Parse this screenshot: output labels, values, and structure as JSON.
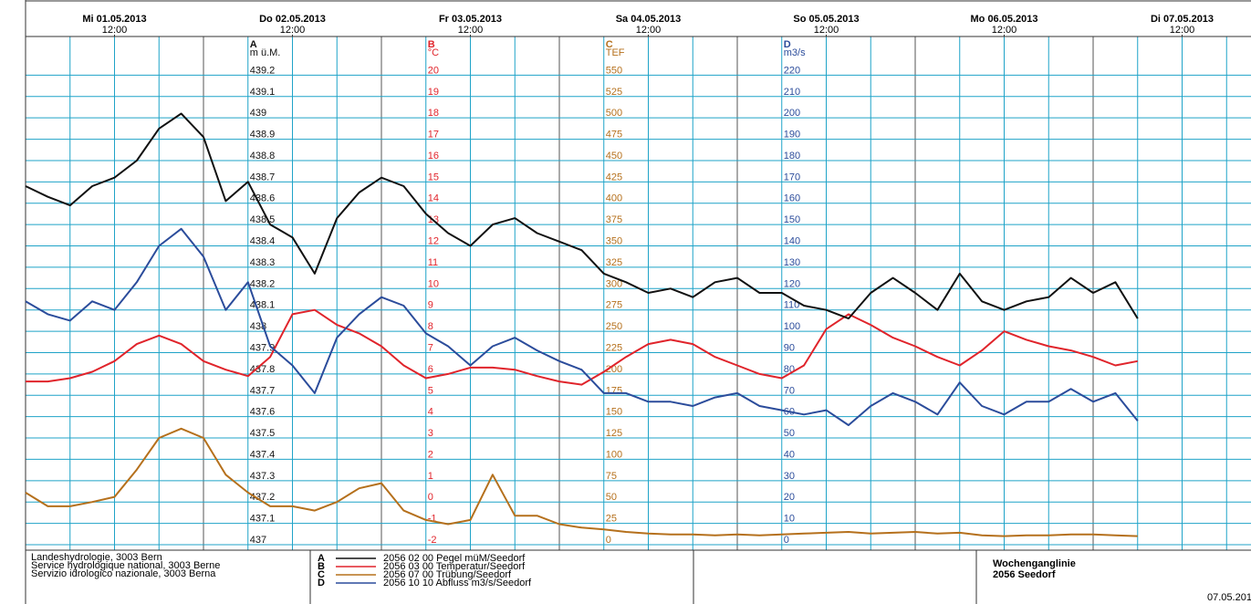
{
  "chart_data": {
    "type": "line",
    "x": [
      "01.05.2013 00:00",
      "01.05.2013 03:00",
      "01.05.2013 06:00",
      "01.05.2013 09:00",
      "01.05.2013 12:00",
      "01.05.2013 15:00",
      "01.05.2013 18:00",
      "01.05.2013 21:00",
      "02.05.2013 00:00",
      "02.05.2013 03:00",
      "02.05.2013 06:00",
      "02.05.2013 09:00",
      "02.05.2013 12:00",
      "02.05.2013 15:00",
      "02.05.2013 18:00",
      "02.05.2013 21:00",
      "03.05.2013 00:00",
      "03.05.2013 03:00",
      "03.05.2013 06:00",
      "03.05.2013 09:00",
      "03.05.2013 12:00",
      "03.05.2013 15:00",
      "03.05.2013 18:00",
      "03.05.2013 21:00",
      "04.05.2013 00:00",
      "04.05.2013 03:00",
      "04.05.2013 06:00",
      "04.05.2013 09:00",
      "04.05.2013 12:00",
      "04.05.2013 15:00",
      "04.05.2013 18:00",
      "04.05.2013 21:00",
      "05.05.2013 00:00",
      "05.05.2013 03:00",
      "05.05.2013 06:00",
      "05.05.2013 09:00",
      "05.05.2013 12:00",
      "05.05.2013 15:00",
      "05.05.2013 18:00",
      "05.05.2013 21:00",
      "06.05.2013 00:00",
      "06.05.2013 03:00",
      "06.05.2013 06:00",
      "06.05.2013 09:00",
      "06.05.2013 12:00",
      "06.05.2013 15:00",
      "06.05.2013 18:00",
      "06.05.2013 21:00",
      "07.05.2013 00:00",
      "07.05.2013 03:00",
      "07.05.2013 06:00"
    ],
    "xticks": [
      {
        "value": "01.05.2013 12:00",
        "label": "Mi 01.05.2013"
      },
      {
        "value": "02.05.2013 12:00",
        "label": "Do 02.05.2013"
      },
      {
        "value": "03.05.2013 12:00",
        "label": "Fr 03.05.2013"
      },
      {
        "value": "04.05.2013 12:00",
        "label": "Sa 04.05.2013"
      },
      {
        "value": "05.05.2013 12:00",
        "label": "So 05.05.2013"
      },
      {
        "value": "06.05.2013 12:00",
        "label": "Mo 06.05.2013"
      },
      {
        "value": "07.05.2013 12:00",
        "label": "Di 07.05.2013"
      }
    ],
    "xtick_sublabel": "12:00",
    "grid": true,
    "series": [
      {
        "code": "A",
        "unit": "m ü.M.",
        "name": "2056 02 00  Pegel müM/Seedorf",
        "color": "#111111",
        "ylim": [
          437,
          439.3
        ],
        "yticks": [
          437,
          437.1,
          437.2,
          437.3,
          437.4,
          437.5,
          437.6,
          437.7,
          437.8,
          437.9,
          438,
          438.1,
          438.2,
          438.3,
          438.4,
          438.5,
          438.6,
          438.7,
          438.8,
          438.9,
          439,
          439.1,
          439.2
        ],
        "values": [
          438.68,
          438.63,
          438.59,
          438.68,
          438.72,
          438.8,
          438.95,
          439.02,
          438.91,
          438.61,
          438.7,
          438.5,
          438.44,
          438.27,
          438.53,
          438.65,
          438.72,
          438.68,
          438.55,
          438.46,
          438.4,
          438.5,
          438.53,
          438.46,
          438.42,
          438.38,
          438.27,
          438.23,
          438.18,
          438.2,
          438.16,
          438.23,
          438.25,
          438.18,
          438.18,
          438.12,
          438.1,
          438.06,
          438.18,
          438.25,
          438.18,
          438.1,
          438.27,
          438.14,
          438.1,
          438.14,
          438.16,
          438.25,
          438.18,
          438.23,
          438.06
        ]
      },
      {
        "code": "B",
        "unit": "°C",
        "name": "2056 03 00  Temperatur/Seedorf",
        "color": "#e0242b",
        "ylim": [
          -2,
          21
        ],
        "yticks": [
          -2,
          -1,
          0,
          1,
          2,
          3,
          4,
          5,
          6,
          7,
          8,
          9,
          10,
          11,
          12,
          13,
          14,
          15,
          16,
          17,
          18,
          19,
          20
        ],
        "values": [
          5.65,
          5.65,
          5.8,
          6.1,
          6.6,
          7.4,
          7.8,
          7.4,
          6.6,
          6.2,
          5.9,
          6.8,
          8.8,
          9,
          8.3,
          7.9,
          7.3,
          6.4,
          5.8,
          6,
          6.3,
          6.3,
          6.2,
          5.9,
          5.65,
          5.5,
          6.1,
          6.8,
          7.4,
          7.6,
          7.4,
          6.8,
          6.4,
          6,
          5.8,
          6.4,
          8.1,
          8.8,
          8.3,
          7.7,
          7.3,
          6.8,
          6.4,
          7.1,
          8,
          7.6,
          7.3,
          7.1,
          6.8,
          6.4,
          6.6
        ]
      },
      {
        "code": "C",
        "unit": "TEF",
        "name": "2056 07 00  Trübung/Seedorf",
        "color": "#b5701c",
        "ylim": [
          0,
          575
        ],
        "yticks": [
          0,
          25,
          50,
          75,
          100,
          125,
          150,
          175,
          200,
          225,
          250,
          275,
          300,
          325,
          350,
          375,
          400,
          425,
          450,
          475,
          500,
          525,
          550
        ],
        "values": [
          61,
          45,
          45,
          50,
          56,
          88,
          125,
          136,
          125,
          82,
          61,
          45,
          45,
          40,
          50,
          66,
          72,
          40,
          29,
          24,
          29,
          82,
          34,
          34,
          24,
          20,
          18,
          15,
          13,
          12,
          12,
          11,
          12,
          11,
          12,
          13,
          14,
          15,
          13,
          14,
          15,
          13,
          14,
          11,
          10,
          11,
          11,
          12,
          12,
          11,
          10
        ]
      },
      {
        "code": "D",
        "unit": "m3/s",
        "name": "2056 10 10  Abfluss m3/s/Seedorf",
        "color": "#2b4c9b",
        "ylim": [
          0,
          230
        ],
        "yticks": [
          0,
          10,
          20,
          30,
          40,
          50,
          60,
          70,
          80,
          90,
          100,
          110,
          120,
          130,
          140,
          150,
          160,
          170,
          180,
          190,
          200,
          210,
          220
        ],
        "values": [
          114,
          108,
          105,
          114,
          110,
          123,
          140,
          148,
          135,
          110,
          123,
          93,
          84,
          71,
          97,
          108,
          116,
          112,
          99,
          93,
          84,
          93,
          97,
          91,
          86,
          82,
          71,
          71,
          67,
          67,
          65,
          69,
          71,
          65,
          63,
          61,
          63,
          56,
          65,
          71,
          67,
          61,
          76,
          65,
          61,
          67,
          67,
          73,
          67,
          71,
          58
        ]
      }
    ],
    "footer": {
      "institution": [
        "Landeshydrologie, 3003 Bern",
        "Service hydrologique national, 3003 Berne",
        "Servizio idrologico nazionale, 3003 Berna"
      ],
      "title": "Wochenganglinie",
      "station": "2056 Seedorf",
      "date": "07.05.201"
    }
  }
}
